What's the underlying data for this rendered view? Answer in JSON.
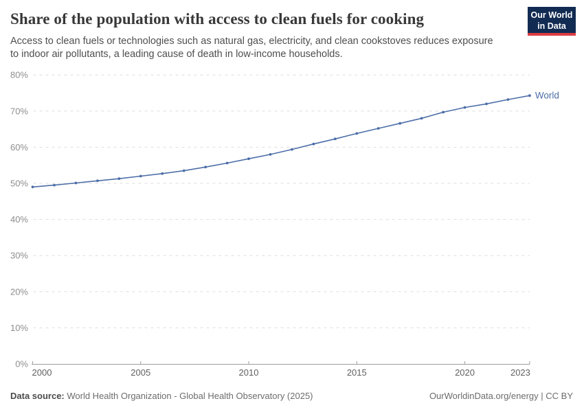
{
  "header": {
    "title": "Share of the population with access to clean fuels for cooking",
    "subtitle": "Access to clean fuels or technologies such as natural gas, electricity, and clean cookstoves reduces exposure to indoor air pollutants, a leading cause of death in low-income households.",
    "logo": {
      "line1": "Our World",
      "line2": "in Data",
      "bg_color": "#122b52",
      "accent_color": "#dc3d43"
    }
  },
  "chart_data": {
    "type": "line",
    "title": "Share of the population with access to clean fuels for cooking",
    "xlabel": "",
    "ylabel": "",
    "xlim": [
      2000,
      2023
    ],
    "ylim": [
      0,
      80
    ],
    "grid": "horizontal-dashed",
    "legend_position": "end-of-line",
    "x_ticks": [
      2000,
      2005,
      2010,
      2015,
      2020,
      2023
    ],
    "y_ticks": [
      0,
      10,
      20,
      30,
      40,
      50,
      60,
      70,
      80
    ],
    "y_tick_suffix": "%",
    "series": [
      {
        "name": "World",
        "color": "#4c6ea8",
        "x": [
          2000,
          2001,
          2002,
          2003,
          2004,
          2005,
          2006,
          2007,
          2008,
          2009,
          2010,
          2011,
          2012,
          2013,
          2014,
          2015,
          2016,
          2017,
          2018,
          2019,
          2020,
          2021,
          2022,
          2023
        ],
        "values": [
          49.0,
          49.5,
          50.1,
          50.7,
          51.3,
          52.0,
          52.7,
          53.5,
          54.5,
          55.6,
          56.8,
          58.0,
          59.4,
          60.9,
          62.3,
          63.8,
          65.2,
          66.6,
          68.0,
          69.7,
          71.0,
          72.0,
          73.2,
          74.3
        ]
      }
    ],
    "colors": {
      "gridline": "#dddddd",
      "axis": "#9e9e9e",
      "y_tick_label": "#8e8e8e",
      "x_tick_label": "#5f5f5f"
    }
  },
  "footer": {
    "source_label": "Data source:",
    "source_text": " World Health Organization - Global Health Observatory (2025)",
    "credit": "OurWorldinData.org/energy | CC BY"
  }
}
